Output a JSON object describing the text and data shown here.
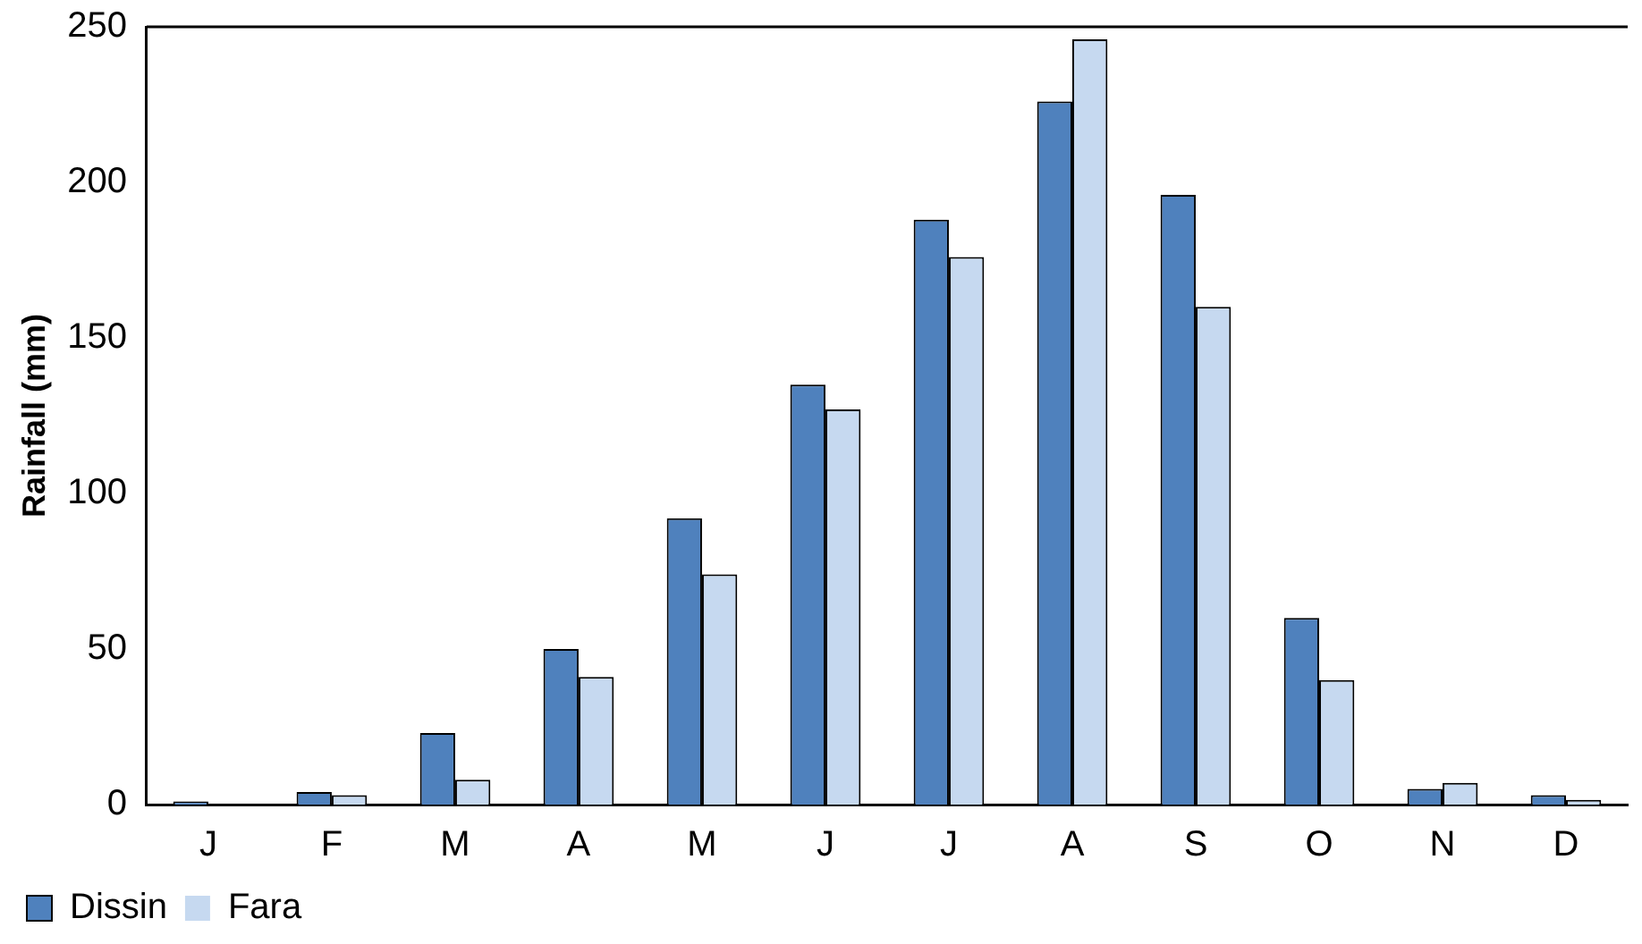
{
  "chart_data": {
    "type": "bar",
    "ylabel": "Rainfall (mm)",
    "categories": [
      "J",
      "F",
      "M",
      "A",
      "M",
      "J",
      "J",
      "A",
      "S",
      "O",
      "N",
      "D"
    ],
    "series": [
      {
        "name": "Dissin",
        "color": "#4f81bd",
        "values": [
          1,
          4,
          23,
          50,
          92,
          135,
          188,
          226,
          196,
          60,
          5,
          3
        ]
      },
      {
        "name": "Fara",
        "color": "#c6d9f0",
        "values": [
          0,
          3,
          8,
          41,
          74,
          127,
          176,
          246,
          160,
          40,
          7,
          1.5
        ]
      }
    ],
    "ylim": [
      0,
      250
    ],
    "yticks": [
      0,
      50,
      100,
      150,
      200,
      250
    ],
    "grid": false,
    "legend": "bottom left"
  }
}
